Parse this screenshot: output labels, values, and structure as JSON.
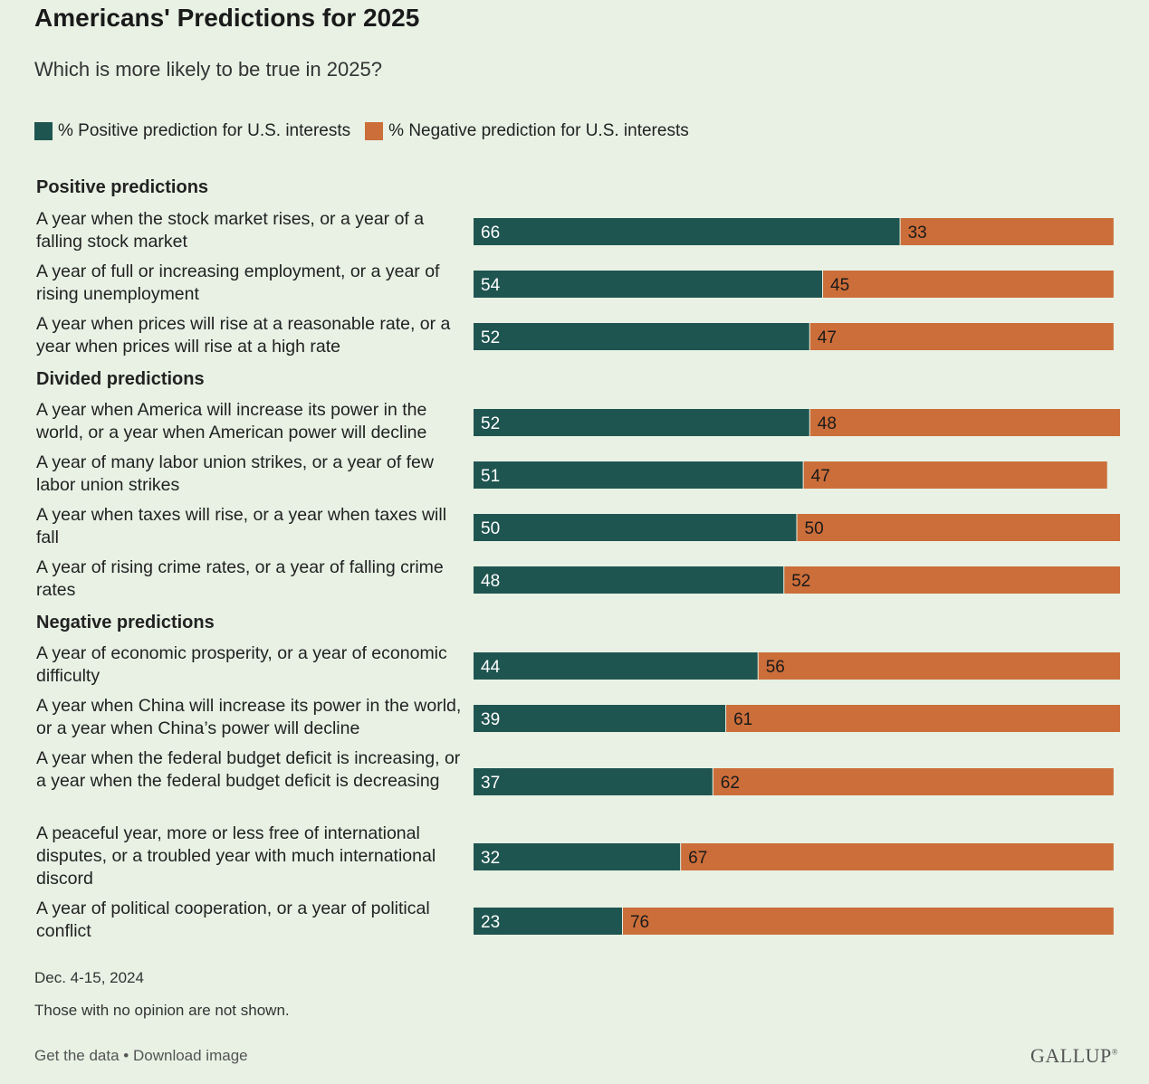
{
  "header": {
    "title": "Americans' Predictions for 2025",
    "subtitle": "Which is more likely to be true in 2025?"
  },
  "colors": {
    "positive": "#1f5550",
    "negative": "#cc6e3a"
  },
  "chart_data": {
    "type": "bar",
    "stacked": true,
    "orientation": "horizontal",
    "legend": [
      "% Positive prediction for U.S. interests",
      "% Negative prediction for U.S. interests"
    ],
    "legend_position": "top-left",
    "groups": [
      {
        "label": "Positive predictions",
        "rows": [
          {
            "label": "A year when the stock market rises, or a year of a falling stock market",
            "positive": 66,
            "negative": 33
          },
          {
            "label": "A year of full or increasing employment, or a year of rising unemployment",
            "positive": 54,
            "negative": 45
          },
          {
            "label": "A year when prices will rise at a reasonable rate, or a year when prices will rise at a high rate",
            "positive": 52,
            "negative": 47
          }
        ]
      },
      {
        "label": "Divided predictions",
        "rows": [
          {
            "label": "A year when America will increase its power in the world, or a year when American power will decline",
            "positive": 52,
            "negative": 48
          },
          {
            "label": "A year of many labor union strikes, or a year of few labor union strikes",
            "positive": 51,
            "negative": 47
          },
          {
            "label": "A year when taxes will rise, or a year when taxes will fall",
            "positive": 50,
            "negative": 50
          },
          {
            "label": "A year of rising crime rates, or a year of falling crime rates",
            "positive": 48,
            "negative": 52
          }
        ]
      },
      {
        "label": "Negative predictions",
        "rows": [
          {
            "label": "A year of economic prosperity, or a year of economic difficulty",
            "positive": 44,
            "negative": 56
          },
          {
            "label": "A year when China will increase its power in the world, or a year when China’s power will decline",
            "positive": 39,
            "negative": 61
          },
          {
            "label": "A year when the federal budget deficit is increasing, or a year when the federal budget deficit is decreasing",
            "positive": 37,
            "negative": 62
          },
          {
            "label": "A peaceful year, more or less free of international disputes, or a troubled year with much international discord",
            "positive": 32,
            "negative": 67
          },
          {
            "label": "A year of political cooperation, or a year of political conflict",
            "positive": 23,
            "negative": 76
          }
        ]
      }
    ]
  },
  "footer": {
    "date": "Dec. 4-15, 2024",
    "note": "Those with no opinion are not shown.",
    "get_data": "Get the data",
    "separator": " • ",
    "download": "Download image",
    "brand": "GALLUP"
  }
}
